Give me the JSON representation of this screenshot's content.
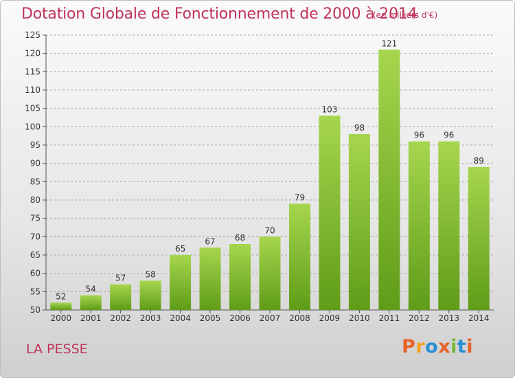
{
  "title": "Dotation Globale de Fonctionnement de 2000 à 2014",
  "unit": "(en milliers d'€)",
  "commune": "LA PESSE",
  "logo": {
    "text": "Proxiti",
    "colors": [
      "#e8622a",
      "#f2a21b",
      "#2a8fd4",
      "#e8622a",
      "#79b930",
      "#2a8fd4",
      "#e8622a"
    ]
  },
  "colors": {
    "title": "#c0335a",
    "bar_top": "#a6d64e",
    "bar_bottom": "#5f9c18",
    "grid": "#aaaaaa"
  },
  "chart_data": {
    "type": "bar",
    "title": "Dotation Globale de Fonctionnement de 2000 à 2014",
    "categories": [
      "2000",
      "2001",
      "2002",
      "2003",
      "2004",
      "2005",
      "2006",
      "2007",
      "2008",
      "2009",
      "2010",
      "2011",
      "2012",
      "2013",
      "2014"
    ],
    "values": [
      52,
      54,
      57,
      58,
      65,
      67,
      68,
      70,
      79,
      103,
      98,
      121,
      96,
      96,
      89
    ],
    "ylim": [
      50,
      125
    ],
    "yticks": [
      50,
      55,
      60,
      65,
      70,
      75,
      80,
      85,
      90,
      95,
      100,
      105,
      110,
      115,
      120,
      125
    ],
    "grid": "dashed horizontal",
    "legend": "none"
  }
}
